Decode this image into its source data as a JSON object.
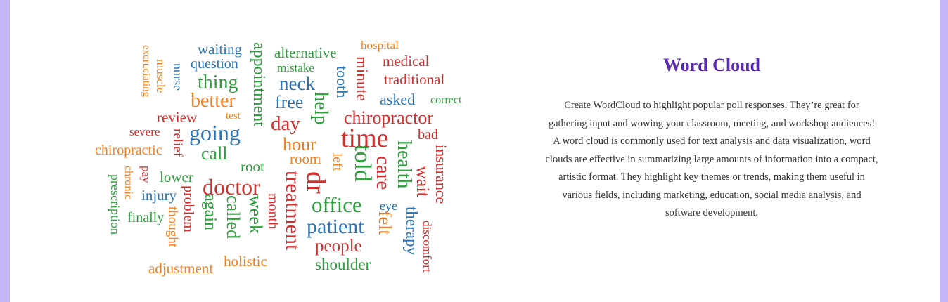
{
  "colors": {
    "blue": "#2a74b4",
    "orange": "#f28022",
    "green": "#2e9e3e",
    "red": "#d32f2f",
    "title": "#5b2bb8",
    "background": "#c4b5f7"
  },
  "info": {
    "title": "Word Cloud",
    "description": "Create WordCloud to highlight popular poll responses. They’re great for gathering input and wowing your classroom, meeting, and workshop audiences! A word cloud is commonly used for text analysis and data visualization, word clouds are effective in summarizing large amounts of information into a compact, artistic format. They highlight key themes or trends, making them useful in various fields, including marketing, education, social media analysis, and software development."
  },
  "words": [
    {
      "text": "waiting",
      "color": "blue"
    },
    {
      "text": "question",
      "color": "blue"
    },
    {
      "text": "excruciating",
      "color": "orange"
    },
    {
      "text": "muscle",
      "color": "orange"
    },
    {
      "text": "nurse",
      "color": "blue"
    },
    {
      "text": "thing",
      "color": "green"
    },
    {
      "text": "appointment",
      "color": "green"
    },
    {
      "text": "alternative",
      "color": "green"
    },
    {
      "text": "mistake",
      "color": "green"
    },
    {
      "text": "hospital",
      "color": "orange"
    },
    {
      "text": "medical",
      "color": "red"
    },
    {
      "text": "traditional",
      "color": "red"
    },
    {
      "text": "tooth",
      "color": "blue"
    },
    {
      "text": "minute",
      "color": "red"
    },
    {
      "text": "better",
      "color": "orange"
    },
    {
      "text": "neck",
      "color": "blue"
    },
    {
      "text": "free",
      "color": "blue"
    },
    {
      "text": "help",
      "color": "green"
    },
    {
      "text": "asked",
      "color": "blue"
    },
    {
      "text": "correct",
      "color": "green"
    },
    {
      "text": "review",
      "color": "red"
    },
    {
      "text": "test",
      "color": "orange"
    },
    {
      "text": "chiropractor",
      "color": "red"
    },
    {
      "text": "day",
      "color": "red"
    },
    {
      "text": "severe",
      "color": "red"
    },
    {
      "text": "going",
      "color": "blue"
    },
    {
      "text": "relief",
      "color": "red"
    },
    {
      "text": "time",
      "color": "red"
    },
    {
      "text": "bad",
      "color": "red"
    },
    {
      "text": "chiropractic",
      "color": "orange"
    },
    {
      "text": "hour",
      "color": "orange"
    },
    {
      "text": "call",
      "color": "green"
    },
    {
      "text": "room",
      "color": "orange"
    },
    {
      "text": "health",
      "color": "green"
    },
    {
      "text": "insurance",
      "color": "red"
    },
    {
      "text": "root",
      "color": "green"
    },
    {
      "text": "left",
      "color": "orange"
    },
    {
      "text": "told",
      "color": "green"
    },
    {
      "text": "care",
      "color": "red"
    },
    {
      "text": "chronic",
      "color": "orange"
    },
    {
      "text": "pay",
      "color": "red"
    },
    {
      "text": "lower",
      "color": "green"
    },
    {
      "text": "treatment",
      "color": "red"
    },
    {
      "text": "dr",
      "color": "red"
    },
    {
      "text": "wait",
      "color": "red"
    },
    {
      "text": "prescription",
      "color": "green"
    },
    {
      "text": "doctor",
      "color": "red"
    },
    {
      "text": "injury",
      "color": "blue"
    },
    {
      "text": "problem",
      "color": "red"
    },
    {
      "text": "again",
      "color": "green"
    },
    {
      "text": "called",
      "color": "green"
    },
    {
      "text": "week",
      "color": "green"
    },
    {
      "text": "month",
      "color": "red"
    },
    {
      "text": "office",
      "color": "green"
    },
    {
      "text": "eye",
      "color": "blue"
    },
    {
      "text": "finally",
      "color": "green"
    },
    {
      "text": "thought",
      "color": "orange"
    },
    {
      "text": "felt",
      "color": "orange"
    },
    {
      "text": "therapy",
      "color": "blue"
    },
    {
      "text": "discomfort",
      "color": "red"
    },
    {
      "text": "patient",
      "color": "blue"
    },
    {
      "text": "people",
      "color": "red"
    },
    {
      "text": "adjustment",
      "color": "orange"
    },
    {
      "text": "holistic",
      "color": "orange"
    },
    {
      "text": "shoulder",
      "color": "green"
    }
  ]
}
